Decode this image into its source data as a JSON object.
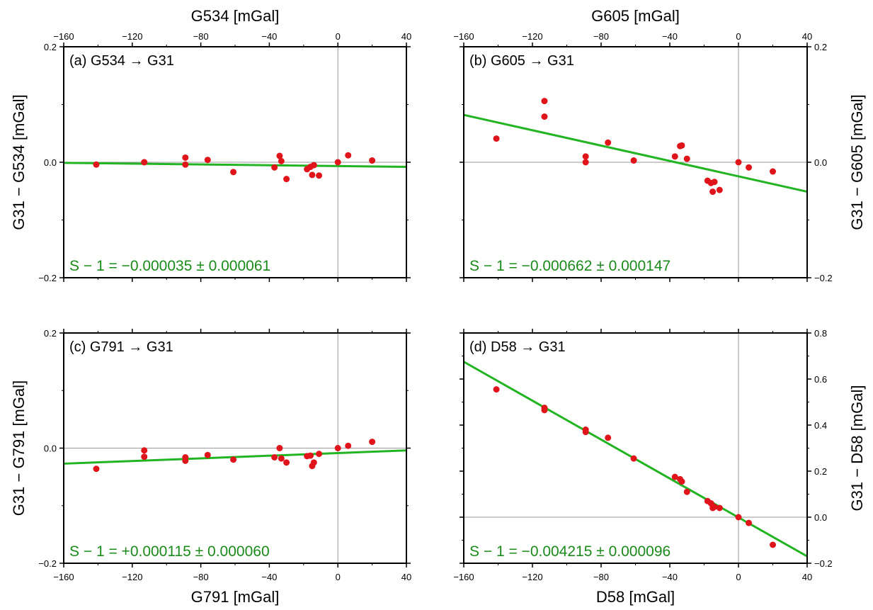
{
  "colors": {
    "points": "#e0141b",
    "fit_line": "#22b422",
    "stat_text": "#1a8a1a",
    "zero_line": "#9a9a9a",
    "frame": "#000000"
  },
  "chart_data": [
    {
      "type": "scatter",
      "panel": "a",
      "label": "(a) G534 → G31",
      "top_xlabel": "G534 [mGal]",
      "bottom_xlabel": "",
      "left_ylabel": "G31 − G534 [mGal]",
      "right_ylabel": "",
      "stat_text": "S − 1 = −0.000035 ± 0.000061",
      "xlim": [
        -160,
        40
      ],
      "ylim": [
        -0.2,
        0.2
      ],
      "xticks": [
        -160,
        -120,
        -80,
        -40,
        0,
        40
      ],
      "xtick_labels": [
        "−160",
        "−120",
        "−80",
        "−40",
        "0",
        "40"
      ],
      "yticks": [
        -0.2,
        0.0,
        0.2
      ],
      "ytick_labels": [
        "−0.2",
        "0.0",
        "0.2"
      ],
      "ytick_side": "left",
      "grid": false,
      "zero_lines": true,
      "points": [
        [
          -141,
          -0.004
        ],
        [
          -113,
          0.0
        ],
        [
          -113,
          0.0
        ],
        [
          -89,
          0.008
        ],
        [
          -89,
          -0.004
        ],
        [
          -76,
          0.004
        ],
        [
          -61,
          -0.017
        ],
        [
          -37,
          -0.009
        ],
        [
          -34,
          0.011
        ],
        [
          -33,
          0.002
        ],
        [
          -30,
          -0.029
        ],
        [
          -18,
          -0.012
        ],
        [
          -16,
          -0.008
        ],
        [
          -15,
          -0.022
        ],
        [
          -14,
          -0.005
        ],
        [
          -11,
          -0.023
        ],
        [
          0,
          0.0
        ],
        [
          6,
          0.012
        ],
        [
          20,
          0.003
        ]
      ],
      "fit": [
        [
          -160,
          -0.001
        ],
        [
          40,
          -0.008
        ]
      ]
    },
    {
      "type": "scatter",
      "panel": "b",
      "label": "(b) G605 → G31",
      "top_xlabel": "G605 [mGal]",
      "bottom_xlabel": "",
      "left_ylabel": "",
      "right_ylabel": "G31 − G605 [mGal]",
      "stat_text": "S − 1 = −0.000662 ± 0.000147",
      "xlim": [
        -160,
        40
      ],
      "ylim": [
        -0.2,
        0.2
      ],
      "xticks": [
        -160,
        -120,
        -80,
        -40,
        0,
        40
      ],
      "xtick_labels": [
        "−160",
        "−120",
        "−80",
        "−40",
        "0",
        "40"
      ],
      "yticks": [
        -0.2,
        0.0,
        0.2
      ],
      "ytick_labels": [
        "−0.2",
        "0.0",
        "0.2"
      ],
      "ytick_side": "right",
      "grid": false,
      "zero_lines": true,
      "points": [
        [
          -141,
          0.041
        ],
        [
          -113,
          0.106
        ],
        [
          -113,
          0.079
        ],
        [
          -89,
          0.01
        ],
        [
          -89,
          0.0
        ],
        [
          -76,
          0.034
        ],
        [
          -61,
          0.003
        ],
        [
          -37,
          0.01
        ],
        [
          -34,
          0.028
        ],
        [
          -33,
          0.029
        ],
        [
          -30,
          0.006
        ],
        [
          -18,
          -0.032
        ],
        [
          -16,
          -0.036
        ],
        [
          -15,
          -0.051
        ],
        [
          -14,
          -0.034
        ],
        [
          -11,
          -0.048
        ],
        [
          0,
          0.0
        ],
        [
          6,
          -0.009
        ],
        [
          20,
          -0.016
        ]
      ],
      "fit": [
        [
          -160,
          0.082
        ],
        [
          40,
          -0.051
        ]
      ]
    },
    {
      "type": "scatter",
      "panel": "c",
      "label": "(c) G791 → G31",
      "top_xlabel": "",
      "bottom_xlabel": "G791 [mGal]",
      "left_ylabel": "G31 − G791 [mGal]",
      "right_ylabel": "",
      "stat_text": "S − 1 = +0.000115 ± 0.000060",
      "xlim": [
        -160,
        40
      ],
      "ylim": [
        -0.2,
        0.2
      ],
      "xticks": [
        -160,
        -120,
        -80,
        -40,
        0,
        40
      ],
      "xtick_labels": [
        "−160",
        "−120",
        "−80",
        "−40",
        "0",
        "40"
      ],
      "yticks": [
        -0.2,
        0.0,
        0.2
      ],
      "ytick_labels": [
        "−0.2",
        "0.0",
        "0.2"
      ],
      "ytick_side": "left",
      "grid": false,
      "zero_lines": true,
      "points": [
        [
          -141,
          -0.036
        ],
        [
          -113,
          -0.004
        ],
        [
          -113,
          -0.015
        ],
        [
          -89,
          -0.016
        ],
        [
          -89,
          -0.022
        ],
        [
          -76,
          -0.012
        ],
        [
          -61,
          -0.02
        ],
        [
          -37,
          -0.016
        ],
        [
          -34,
          0.0
        ],
        [
          -33,
          -0.018
        ],
        [
          -30,
          -0.025
        ],
        [
          -18,
          -0.014
        ],
        [
          -16,
          -0.013
        ],
        [
          -15,
          -0.031
        ],
        [
          -14,
          -0.025
        ],
        [
          -11,
          -0.01
        ],
        [
          0,
          0.0
        ],
        [
          6,
          0.004
        ],
        [
          20,
          0.011
        ]
      ],
      "fit": [
        [
          -160,
          -0.027
        ],
        [
          40,
          -0.004
        ]
      ]
    },
    {
      "type": "scatter",
      "panel": "d",
      "label": "(d) D58 → G31",
      "top_xlabel": "",
      "bottom_xlabel": "D58 [mGal]",
      "left_ylabel": "",
      "right_ylabel": "G31 − D58 [mGal]",
      "stat_text": "S − 1 = −0.004215 ± 0.000096",
      "xlim": [
        -160,
        40
      ],
      "ylim": [
        -0.2,
        0.8
      ],
      "xticks": [
        -160,
        -120,
        -80,
        -40,
        0,
        40
      ],
      "xtick_labels": [
        "−160",
        "−120",
        "−80",
        "−40",
        "0",
        "40"
      ],
      "yticks": [
        -0.2,
        0.0,
        0.2,
        0.4,
        0.6,
        0.8
      ],
      "ytick_labels": [
        "−0.2",
        "0.0",
        "0.2",
        "0.4",
        "0.6",
        "0.8"
      ],
      "ytick_side": "right",
      "grid": false,
      "zero_lines": true,
      "points": [
        [
          -141,
          0.555
        ],
        [
          -113,
          0.475
        ],
        [
          -113,
          0.465
        ],
        [
          -89,
          0.38
        ],
        [
          -89,
          0.37
        ],
        [
          -76,
          0.345
        ],
        [
          -61,
          0.255
        ],
        [
          -37,
          0.175
        ],
        [
          -34,
          0.165
        ],
        [
          -33,
          0.155
        ],
        [
          -30,
          0.11
        ],
        [
          -18,
          0.07
        ],
        [
          -16,
          0.06
        ],
        [
          -15,
          0.04
        ],
        [
          -14,
          0.045
        ],
        [
          -11,
          0.04
        ],
        [
          0,
          0.0
        ],
        [
          6,
          -0.025
        ],
        [
          20,
          -0.12
        ]
      ],
      "fit": [
        [
          -160,
          0.675
        ],
        [
          40,
          -0.17
        ]
      ]
    }
  ]
}
